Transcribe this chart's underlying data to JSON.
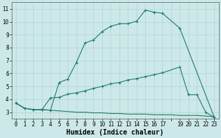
{
  "line1_x": [
    0,
    1,
    2,
    3,
    4,
    5,
    6,
    7,
    8,
    9,
    10,
    11,
    12,
    13,
    14,
    15,
    16,
    17,
    19,
    23
  ],
  "line1_y": [
    3.7,
    3.3,
    3.2,
    3.2,
    3.15,
    5.3,
    5.55,
    6.85,
    8.35,
    8.6,
    9.25,
    9.65,
    9.85,
    9.85,
    10.05,
    10.9,
    10.75,
    10.65,
    9.5,
    2.6
  ],
  "line2_x": [
    0,
    1,
    2,
    3,
    4,
    5,
    6,
    7,
    8,
    9,
    10,
    11,
    12,
    13,
    14,
    15,
    16,
    17,
    19,
    20,
    21,
    22,
    23
  ],
  "line2_y": [
    3.7,
    3.3,
    3.2,
    3.2,
    4.1,
    4.15,
    4.4,
    4.5,
    4.65,
    4.85,
    5.0,
    5.2,
    5.3,
    5.5,
    5.6,
    5.75,
    5.9,
    6.05,
    6.5,
    4.35,
    4.35,
    3.0,
    2.6
  ],
  "line3_x": [
    0,
    1,
    2,
    3,
    4,
    5,
    6,
    7,
    8,
    9,
    10,
    11,
    12,
    13,
    14,
    15,
    16,
    17,
    18,
    19,
    20,
    21,
    22,
    23
  ],
  "line3_y": [
    3.7,
    3.3,
    3.2,
    3.2,
    3.15,
    3.1,
    3.05,
    3.0,
    3.0,
    2.95,
    2.95,
    2.9,
    2.9,
    2.85,
    2.85,
    2.85,
    2.8,
    2.8,
    2.8,
    2.75,
    2.75,
    2.75,
    2.7,
    2.65
  ],
  "line_color": "#1a7a6e",
  "bg_color": "#cde8e8",
  "grid_color": "#afd4d4",
  "xlabel": "Humidex (Indice chaleur)",
  "xlim": [
    -0.5,
    23.5
  ],
  "ylim": [
    2.5,
    11.5
  ],
  "xticks": [
    0,
    1,
    2,
    3,
    4,
    5,
    6,
    7,
    8,
    9,
    10,
    11,
    12,
    13,
    14,
    15,
    16,
    17,
    19,
    20,
    21,
    22,
    23
  ],
  "yticks": [
    3,
    4,
    5,
    6,
    7,
    8,
    9,
    10,
    11
  ],
  "tick_fontsize": 5.5,
  "xlabel_fontsize": 7.0
}
